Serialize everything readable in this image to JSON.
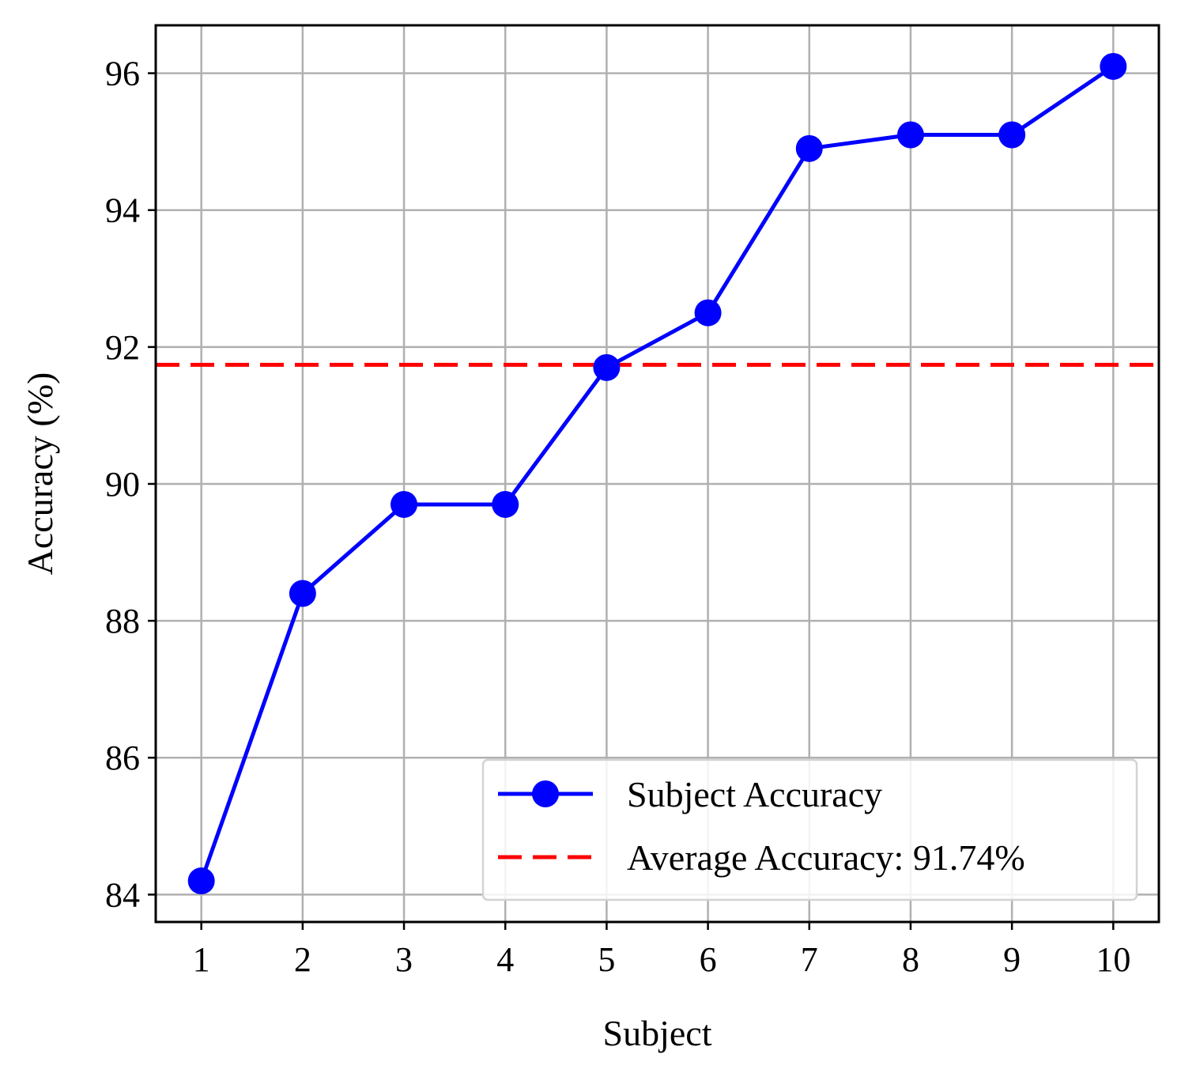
{
  "chart_data": {
    "type": "line",
    "title": "",
    "xlabel": "Subject",
    "ylabel": "Accuracy (%)",
    "x": [
      1,
      2,
      3,
      4,
      5,
      6,
      7,
      8,
      9,
      10
    ],
    "x_ticks": [
      "1",
      "2",
      "3",
      "4",
      "5",
      "6",
      "7",
      "8",
      "9",
      "10"
    ],
    "xlim": [
      0.55,
      10.45
    ],
    "ylim": [
      83.6,
      96.7
    ],
    "y_ticks": [
      84,
      86,
      88,
      90,
      92,
      94,
      96
    ],
    "grid": true,
    "legend_position": "lower-right",
    "series": [
      {
        "name": "Subject Accuracy",
        "color": "#0000ff",
        "marker": "circle",
        "values": [
          84.2,
          88.4,
          89.7,
          89.7,
          91.7,
          92.5,
          94.9,
          95.1,
          95.1,
          96.1
        ]
      }
    ],
    "reference_lines": [
      {
        "name": "Average Accuracy: 91.74%",
        "value": 91.74,
        "color": "#ff0000",
        "style": "dashed"
      }
    ]
  }
}
